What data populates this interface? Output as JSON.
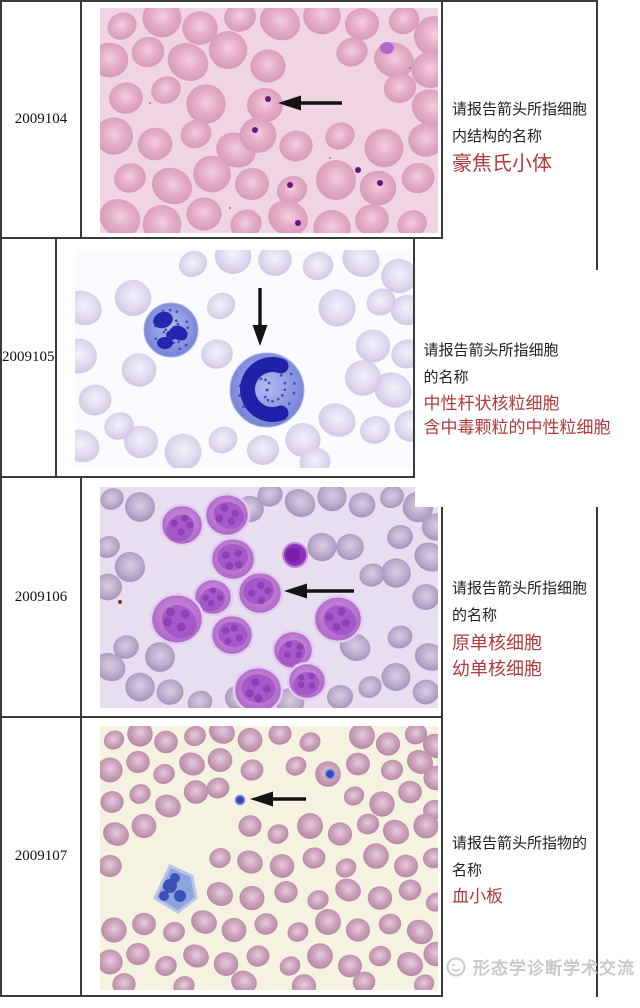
{
  "rows": [
    {
      "id": "2009104",
      "question_lines": [
        "请报告箭头所指细胞",
        "内结构的名称"
      ],
      "answers": [
        "豪焦氏小体"
      ]
    },
    {
      "id": "2009105",
      "question_lines": [
        "请报告箭头所指细胞",
        "的名称"
      ],
      "answers": [
        "中性杆状核粒细胞",
        "含中毒颗粒的中性粒细胞"
      ]
    },
    {
      "id": "2009106",
      "question_lines": [
        "请报告箭头所指细胞",
        "的名称"
      ],
      "answers": [
        "原单核细胞",
        "幼单核细胞"
      ]
    },
    {
      "id": "2009107",
      "question_lines": [
        "请报告箭头所指物的",
        "名称"
      ],
      "answers": [
        "血小板"
      ]
    }
  ],
  "watermark": {
    "label": "形态学诊断学术交流"
  },
  "colors": {
    "answer_red": "#b03a3a",
    "question_text": "#222222",
    "table_border": "#3a3a3a",
    "watermark_gray": "#c8c8c8",
    "arrow_black": "#141414",
    "smear1_background": "#f0d4e1",
    "smear2_background": "#fbfaff",
    "smear3_background": "#e7dff0",
    "smear4_background": "#f6f2e2"
  }
}
